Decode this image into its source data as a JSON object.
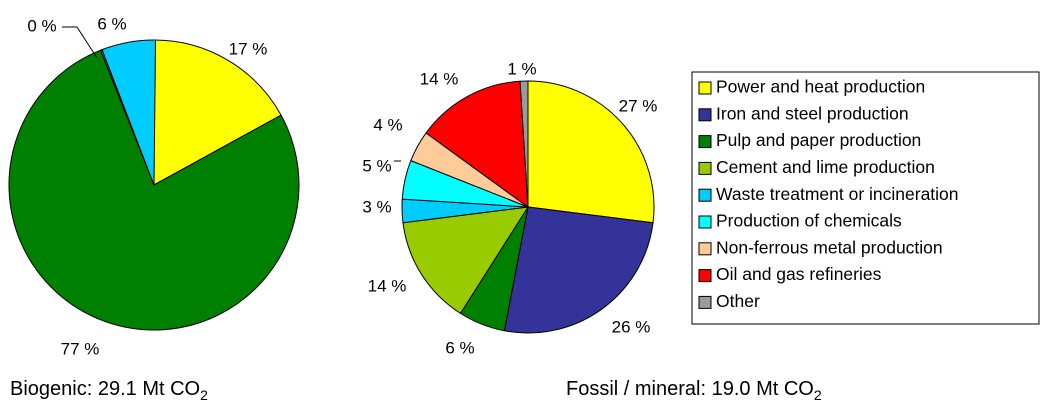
{
  "chart_data": [
    {
      "type": "pie",
      "caption_prefix": "Biogenic: 29.1 Mt CO",
      "caption_sub": "2",
      "slices": [
        {
          "category": "Power and heat production",
          "value": 17,
          "label": "17 %",
          "color": "#FFFF00"
        },
        {
          "category": "Pulp and paper production",
          "value": 77,
          "label": "77 %",
          "color": "#008000"
        },
        {
          "category": "Other",
          "value": 0,
          "label": "0 %",
          "color": "#9B9B9B"
        },
        {
          "category": "Waste treatment or incineration",
          "value": 6,
          "label": "6 %",
          "color": "#00CCFF"
        }
      ]
    },
    {
      "type": "pie",
      "caption_prefix": "Fossil / mineral: 19.0 Mt CO",
      "caption_sub": "2",
      "slices": [
        {
          "category": "Power and heat production",
          "value": 27,
          "label": "27 %",
          "color": "#FFFF00"
        },
        {
          "category": "Iron and steel production",
          "value": 26,
          "label": "26 %",
          "color": "#333399"
        },
        {
          "category": "Pulp and paper production",
          "value": 6,
          "label": "6 %",
          "color": "#008000"
        },
        {
          "category": "Cement and lime production",
          "value": 14,
          "label": "14 %",
          "color": "#99CC00"
        },
        {
          "category": "Waste treatment or incineration",
          "value": 3,
          "label": "3 %",
          "color": "#00CCFF"
        },
        {
          "category": "Production of chemicals",
          "value": 5,
          "label": "5 %",
          "color": "#00FFFF"
        },
        {
          "category": "Non-ferrous metal production",
          "value": 4,
          "label": "4 %",
          "color": "#FFCC99"
        },
        {
          "category": "Oil and gas refineries",
          "value": 14,
          "label": "14 %",
          "color": "#FF0000"
        },
        {
          "category": "Other",
          "value": 1,
          "label": "1 %",
          "color": "#9B9B9B"
        }
      ]
    }
  ],
  "legend": [
    {
      "label": "Power and heat production",
      "color": "#FFFF00"
    },
    {
      "label": "Iron and steel production",
      "color": "#333399"
    },
    {
      "label": "Pulp and paper production",
      "color": "#008000"
    },
    {
      "label": "Cement and lime production",
      "color": "#99CC00"
    },
    {
      "label": "Waste treatment or incineration",
      "color": "#00CCFF"
    },
    {
      "label": "Production of chemicals",
      "color": "#00FFFF"
    },
    {
      "label": "Non-ferrous metal production",
      "color": "#FFCC99"
    },
    {
      "label": "Oil and gas refineries",
      "color": "#FF0000"
    },
    {
      "label": "Other",
      "color": "#9B9B9B"
    }
  ]
}
